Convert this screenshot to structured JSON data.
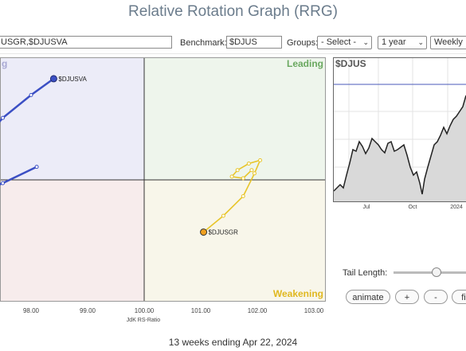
{
  "header": {
    "title": "Relative Rotation Graph (RRG)"
  },
  "toolbar": {
    "symbols_value": "USGR,$DJUSVA",
    "benchmark_label": "Benchmark:",
    "benchmark_value": "$DJUS",
    "groups_label": "Groups:",
    "groups_selected": "- Select -",
    "period_selected": "1 year",
    "frequency_selected": "Weekly"
  },
  "rrg": {
    "quadrants": {
      "leading": "Leading",
      "weakening": "Weakening"
    },
    "x_axis_title": "JdK RS-Ratio",
    "x_ticks": [
      "98.00",
      "99.00",
      "100.00",
      "101.00",
      "102.00",
      "103.00"
    ],
    "colors": {
      "djusva": "#3b4fc4",
      "djusgr": "#e8c52a",
      "lagging": "#f7ecec",
      "improving": "#ececf8",
      "leading_bg": "#eef5ec",
      "weakening_bg": "#f8f6ea"
    }
  },
  "chart_data": {
    "type": "scatter",
    "xlabel": "JdK RS-Ratio",
    "series": [
      {
        "name": "$DJUSVA",
        "tail_points": [
          [
            96.6,
            100.2
          ],
          [
            96.9,
            100.7
          ],
          [
            97.2,
            101.3
          ],
          [
            97.5,
            101.9
          ],
          [
            98.0,
            102.6
          ],
          [
            98.4,
            103.1
          ]
        ]
      },
      {
        "name": "$DJUSVA (lower)",
        "tail_points": [
          [
            96.7,
            99.2
          ],
          [
            97.1,
            99.6
          ],
          [
            97.5,
            99.9
          ],
          [
            98.1,
            100.4
          ]
        ]
      },
      {
        "name": "$DJUSGR",
        "tail_points": [
          [
            101.05,
            98.4
          ],
          [
            101.4,
            98.9
          ],
          [
            101.75,
            99.5
          ],
          [
            101.95,
            100.2
          ],
          [
            102.05,
            100.6
          ],
          [
            101.85,
            100.5
          ],
          [
            101.65,
            100.3
          ],
          [
            101.55,
            100.1
          ],
          [
            101.75,
            100.05
          ],
          [
            101.9,
            100.3
          ]
        ]
      }
    ]
  },
  "benchmark_chart": {
    "symbol": "$DJUS",
    "x_ticks": [
      "Jul",
      "Oct",
      "2024"
    ],
    "colors": {
      "area": "#d9d9d9",
      "line": "#222222",
      "ref_line": "#4a5ab8"
    }
  },
  "controls": {
    "tail_length_label": "Tail Length:",
    "tail_length_value": 0.52,
    "animate_label": "animate",
    "plus_label": "+",
    "minus_label": "-",
    "fit_label": "fi"
  },
  "footer": {
    "caption": "13 weeks ending Apr 22, 2024"
  }
}
